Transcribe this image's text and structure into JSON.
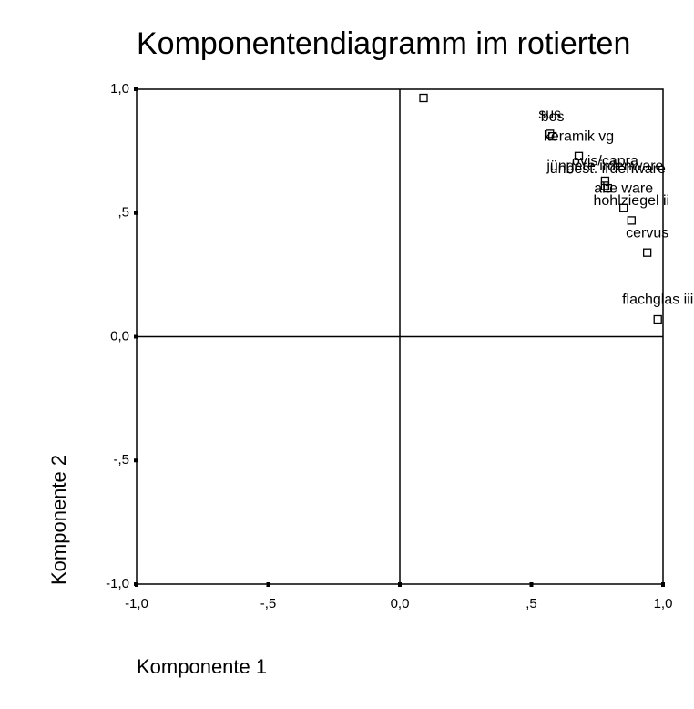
{
  "chart_data": {
    "type": "scatter",
    "title": "Komponentendiagramm im rotierten",
    "x_label": "Komponente 1",
    "y_label": "Komponente 2",
    "xlim": [
      -1,
      1
    ],
    "ylim": [
      -1,
      1
    ],
    "xticks": [
      {
        "value": -1,
        "label": "-1,0"
      },
      {
        "value": -0.5,
        "label": "-,5"
      },
      {
        "value": 0,
        "label": "0,0"
      },
      {
        "value": 0.5,
        "label": ",5"
      },
      {
        "value": 1,
        "label": "1,0"
      }
    ],
    "yticks": [
      {
        "value": -1,
        "label": "-1,0"
      },
      {
        "value": -0.5,
        "label": "-,5"
      },
      {
        "value": 0,
        "label": "0,0"
      },
      {
        "value": 0.5,
        "label": ",5"
      },
      {
        "value": 1,
        "label": "1,0"
      }
    ],
    "color": "#000000",
    "points": {
      "labels": [
        null,
        "sus",
        "bos",
        "keramik vg",
        "ovis/capra",
        "jüngere irdenware",
        "unbest. irdenware",
        "alte ware",
        "hohlziegel ii",
        "cervus",
        "flachglas iii"
      ],
      "x": [
        0.09,
        0.57,
        0.58,
        0.68,
        0.78,
        0.78,
        0.79,
        0.85,
        0.88,
        0.94,
        0.98
      ],
      "y": [
        0.965,
        0.82,
        0.81,
        0.73,
        0.63,
        0.61,
        0.6,
        0.52,
        0.47,
        0.34,
        0.07
      ]
    }
  }
}
